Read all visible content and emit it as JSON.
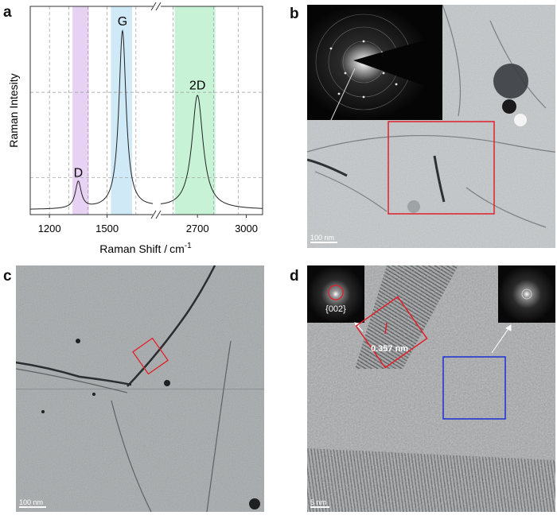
{
  "panels": {
    "a": "a",
    "b": "b",
    "c": "c",
    "d": "d"
  },
  "chart_data": {
    "type": "line",
    "xlabel": "Raman Shift /",
    "xlabel_unit": "cm",
    "xlabel_exp": "-1",
    "ylabel": "Raman Intesity",
    "x_ticks_left": [
      1200,
      1500
    ],
    "x_ticks_right": [
      2700,
      3000
    ],
    "x_segments": [
      [
        1100,
        1750
      ],
      [
        2450,
        3100
      ]
    ],
    "x_axis_break": true,
    "peaks": [
      {
        "label": "D",
        "position": 1350,
        "relative_intensity": 0.15
      },
      {
        "label": "G",
        "position": 1580,
        "relative_intensity": 1.0
      },
      {
        "label": "2D",
        "position": 2700,
        "relative_intensity": 0.64
      }
    ],
    "highlight_bands": [
      {
        "label": "D",
        "range": [
          1320,
          1405
        ],
        "color": "#e8d2f3"
      },
      {
        "label": "G",
        "range": [
          1520,
          1630
        ],
        "color": "#cfe9f6"
      },
      {
        "label": "2D",
        "range": [
          2560,
          2810
        ],
        "color": "#c8f2d6"
      }
    ],
    "grid": "dashed"
  },
  "panel_b": {
    "scalebar": "100 nm",
    "box_color": "#e0202a"
  },
  "panel_c": {
    "scalebar": "100 nm",
    "box_color": "#e0202a"
  },
  "panel_d": {
    "scalebar": "5 nm",
    "fft_label": "{002}",
    "lattice_spacing": "0.357 nm",
    "box_color_red": "#e0202a",
    "box_color_blue": "#1d2fd6"
  }
}
